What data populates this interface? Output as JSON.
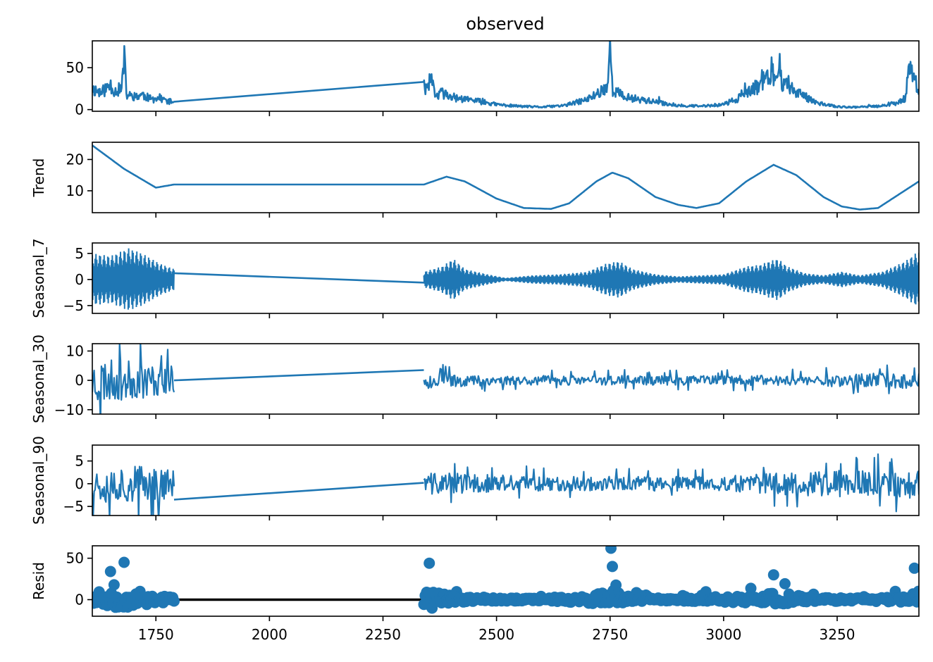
{
  "colors": {
    "series": "#1f77b4",
    "axis": "#000000",
    "resid_zero": "#000000"
  },
  "chart_data": {
    "type": "line",
    "title": "observed",
    "xlim": [
      1610,
      3430
    ],
    "xticks": [
      1750,
      2000,
      2250,
      2500,
      2750,
      3000,
      3250
    ],
    "xtick_labels": [
      "1750",
      "2000",
      "2250",
      "2500",
      "2750",
      "3000",
      "3250"
    ],
    "gap": [
      1790,
      2340
    ],
    "panels": [
      {
        "id": "observed",
        "ylabel": "",
        "ylim": [
          -2,
          82
        ],
        "yticks": [
          0,
          50
        ],
        "ytick_labels": [
          "0",
          "50"
        ],
        "kind": "line",
        "keypoints": [
          [
            1610,
            25
          ],
          [
            1630,
            20
          ],
          [
            1650,
            30
          ],
          [
            1660,
            22
          ],
          [
            1675,
            25
          ],
          [
            1680,
            64
          ],
          [
            1685,
            18
          ],
          [
            1700,
            15
          ],
          [
            1720,
            18
          ],
          [
            1740,
            12
          ],
          [
            1760,
            14
          ],
          [
            1775,
            10
          ],
          [
            1790,
            9
          ],
          [
            2340,
            33
          ],
          [
            2348,
            20
          ],
          [
            2355,
            38
          ],
          [
            2365,
            15
          ],
          [
            2380,
            20
          ],
          [
            2400,
            15
          ],
          [
            2430,
            12
          ],
          [
            2460,
            10
          ],
          [
            2500,
            6
          ],
          [
            2550,
            4
          ],
          [
            2600,
            3
          ],
          [
            2650,
            5
          ],
          [
            2700,
            12
          ],
          [
            2730,
            22
          ],
          [
            2745,
            30
          ],
          [
            2750,
            79
          ],
          [
            2755,
            25
          ],
          [
            2780,
            15
          ],
          [
            2820,
            12
          ],
          [
            2860,
            8
          ],
          [
            2900,
            5
          ],
          [
            2950,
            4
          ],
          [
            3000,
            6
          ],
          [
            3050,
            18
          ],
          [
            3080,
            30
          ],
          [
            3100,
            42
          ],
          [
            3120,
            38
          ],
          [
            3150,
            25
          ],
          [
            3180,
            15
          ],
          [
            3220,
            6
          ],
          [
            3260,
            3
          ],
          [
            3300,
            3
          ],
          [
            3340,
            4
          ],
          [
            3380,
            8
          ],
          [
            3400,
            14
          ],
          [
            3410,
            50
          ],
          [
            3420,
            35
          ],
          [
            3430,
            22
          ]
        ],
        "noise": 0.35,
        "seed": 11
      },
      {
        "id": "trend",
        "ylabel": "Trend",
        "ylim": [
          3,
          25.5
        ],
        "yticks": [
          10,
          20
        ],
        "ytick_labels": [
          "10",
          "20"
        ],
        "kind": "smooth",
        "keypoints": [
          [
            1610,
            24.5
          ],
          [
            1680,
            17
          ],
          [
            1750,
            11
          ],
          [
            1790,
            12
          ],
          [
            2340,
            12
          ],
          [
            2390,
            14.5
          ],
          [
            2430,
            13
          ],
          [
            2500,
            7.5
          ],
          [
            2560,
            4.5
          ],
          [
            2620,
            4.2
          ],
          [
            2660,
            6
          ],
          [
            2720,
            13
          ],
          [
            2755,
            15.8
          ],
          [
            2790,
            14
          ],
          [
            2850,
            8
          ],
          [
            2900,
            5.5
          ],
          [
            2940,
            4.5
          ],
          [
            2990,
            6
          ],
          [
            3050,
            13
          ],
          [
            3110,
            18.3
          ],
          [
            3160,
            15
          ],
          [
            3220,
            8
          ],
          [
            3260,
            5
          ],
          [
            3300,
            4
          ],
          [
            3340,
            4.5
          ],
          [
            3430,
            13
          ]
        ]
      },
      {
        "id": "seasonal_7",
        "ylabel": "Seasonal_7",
        "ylim": [
          -6.5,
          7
        ],
        "yticks": [
          -5,
          0,
          5
        ],
        "ytick_labels": [
          "−5",
          "0",
          "5"
        ],
        "kind": "band",
        "envelope": [
          [
            1610,
            5
          ],
          [
            1650,
            4.5
          ],
          [
            1690,
            6
          ],
          [
            1720,
            5
          ],
          [
            1760,
            3
          ],
          [
            1790,
            2
          ],
          [
            2340,
            1.5
          ],
          [
            2380,
            2.5
          ],
          [
            2405,
            4
          ],
          [
            2430,
            2
          ],
          [
            2480,
            1
          ],
          [
            2520,
            0.3
          ],
          [
            2580,
            0.8
          ],
          [
            2640,
            1
          ],
          [
            2700,
            1.5
          ],
          [
            2740,
            3
          ],
          [
            2770,
            3.5
          ],
          [
            2800,
            2
          ],
          [
            2850,
            1
          ],
          [
            2900,
            0.6
          ],
          [
            2950,
            0.8
          ],
          [
            3000,
            1
          ],
          [
            3050,
            2.5
          ],
          [
            3080,
            2.8
          ],
          [
            3100,
            3.5
          ],
          [
            3120,
            4
          ],
          [
            3140,
            2.5
          ],
          [
            3180,
            1.2
          ],
          [
            3220,
            0.8
          ],
          [
            3260,
            1.5
          ],
          [
            3300,
            0.8
          ],
          [
            3350,
            1.5
          ],
          [
            3400,
            3.5
          ],
          [
            3430,
            5.5
          ]
        ],
        "gap_line": [
          [
            1790,
            1.2
          ],
          [
            2340,
            -0.6
          ]
        ]
      },
      {
        "id": "seasonal_30",
        "ylabel": "Seasonal_30",
        "ylim": [
          -11.5,
          12.5
        ],
        "yticks": [
          -10,
          0,
          10
        ],
        "ytick_labels": [
          "−10",
          "0",
          "10"
        ],
        "kind": "line",
        "envelope": [
          [
            1610,
            10
          ],
          [
            1700,
            8
          ],
          [
            1790,
            6
          ],
          [
            2340,
            4
          ],
          [
            2380,
            3
          ],
          [
            2500,
            2
          ],
          [
            2700,
            2
          ],
          [
            3000,
            2
          ],
          [
            3200,
            2.5
          ],
          [
            3430,
            3.5
          ]
        ],
        "gap_line": [
          [
            1790,
            0
          ],
          [
            2340,
            3.5
          ]
        ],
        "seed": 23
      },
      {
        "id": "seasonal_90",
        "ylabel": "Seasonal_90",
        "ylim": [
          -7,
          8.5
        ],
        "yticks": [
          -5,
          0,
          5
        ],
        "ytick_labels": [
          "−5",
          "0",
          "5"
        ],
        "kind": "line",
        "envelope": [
          [
            1610,
            5
          ],
          [
            1700,
            5.5
          ],
          [
            1790,
            4
          ],
          [
            2340,
            3
          ],
          [
            2400,
            3
          ],
          [
            2600,
            2
          ],
          [
            2800,
            2
          ],
          [
            3000,
            2
          ],
          [
            3100,
            3
          ],
          [
            3200,
            3.5
          ],
          [
            3430,
            4
          ]
        ],
        "gap_line": [
          [
            1790,
            -3.5
          ],
          [
            2340,
            0.2
          ]
        ],
        "seed": 37
      },
      {
        "id": "resid",
        "ylabel": "Resid",
        "ylim": [
          -20,
          65
        ],
        "yticks": [
          0,
          50
        ],
        "ytick_labels": [
          "0",
          "50"
        ],
        "kind": "scatter",
        "envelope": [
          [
            1610,
            20
          ],
          [
            1680,
            40
          ],
          [
            1790,
            10
          ],
          [
            2340,
            35
          ],
          [
            2360,
            40
          ],
          [
            2400,
            15
          ],
          [
            2450,
            8
          ],
          [
            2600,
            5
          ],
          [
            2700,
            15
          ],
          [
            2750,
            40
          ],
          [
            2800,
            10
          ],
          [
            2900,
            6
          ],
          [
            3050,
            15
          ],
          [
            3100,
            25
          ],
          [
            3200,
            10
          ],
          [
            3300,
            6
          ],
          [
            3400,
            12
          ],
          [
            3430,
            35
          ]
        ],
        "peaks": [
          [
            2752,
            62
          ],
          [
            2352,
            44
          ],
          [
            1680,
            45
          ],
          [
            1650,
            34
          ],
          [
            2755,
            40
          ],
          [
            3110,
            30
          ],
          [
            3420,
            38
          ]
        ],
        "seed": 53
      }
    ]
  }
}
